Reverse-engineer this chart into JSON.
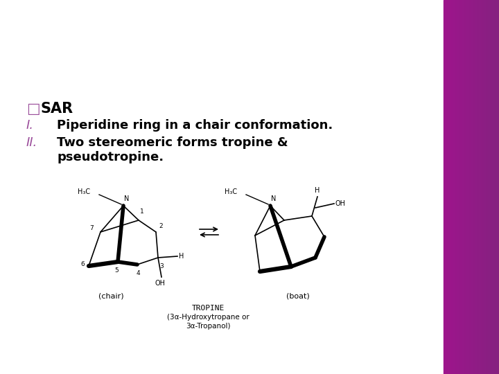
{
  "bg_color": "#ffffff",
  "title_text": "□ SAR",
  "title_color": "#000000",
  "square_color": "#9B4E9B",
  "item1_roman": "I.",
  "item1_text": "Piperidine ring in a chair conformation.",
  "item2_roman": "II.",
  "item2_text1": "Two stereomeric forms tropine &",
  "item2_text2": "pseudotropine.",
  "roman_color": "#9B4E9B",
  "chair_label": "(chair)",
  "boat_label": "(boat)",
  "tropine_line1": "TROPINE",
  "tropine_line2": "(3α-Hydroxytropane or",
  "tropine_line3": "3α-Tropanol)",
  "ch3_label_chair": "H₃C",
  "ch3_label_boat": "H₃C",
  "oh_label": "OH",
  "h_label": "H",
  "n_label": "N"
}
